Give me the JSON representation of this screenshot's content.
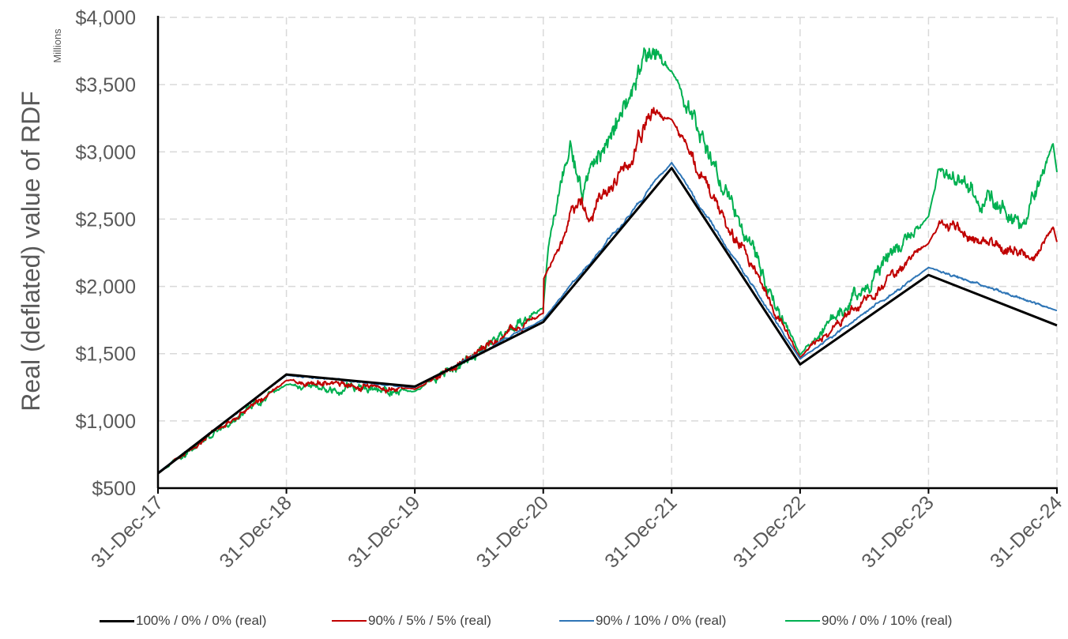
{
  "chart_data": {
    "type": "line",
    "title": "",
    "ylabel": "Real (deflated) value of RDF",
    "yunit": "Millions",
    "xlabel": "",
    "ylim": [
      500,
      4000
    ],
    "yticks": [
      500,
      1000,
      1500,
      2000,
      2500,
      3000,
      3500,
      4000
    ],
    "ytick_labels": [
      "$500",
      "$1,000",
      "$1,500",
      "$2,000",
      "$2,500",
      "$3,000",
      "$3,500",
      "$4,000"
    ],
    "x": [
      "31-Dec-17",
      "31-Dec-18",
      "31-Dec-19",
      "31-Dec-20",
      "31-Dec-21",
      "31-Dec-22",
      "31-Dec-23",
      "31-Dec-24"
    ],
    "grid": true,
    "legend_position": "bottom",
    "series": [
      {
        "name": "100% / 0% / 0% (real)",
        "color": "#000000",
        "noise": 0,
        "values": [
          610,
          1345,
          1255,
          1735,
          2880,
          1420,
          2085,
          1710
        ]
      },
      {
        "name": "90% / 5% / 5% (real)",
        "color": "#C00000",
        "noise": 0.012,
        "values": [
          615,
          1300,
          1235,
          1800,
          3240,
          1470,
          2320,
          2330
        ],
        "peaks": [
          {
            "x": "31-Dec-20",
            "y": 2050
          },
          {
            "x": "20-Apr-21",
            "y": 2620
          },
          {
            "x": "15-May-21",
            "y": 2480
          },
          {
            "x": "10-Nov-21",
            "y": 3280
          },
          {
            "x": "28-Dec-21",
            "y": 3240
          },
          {
            "x": "30-Jan-24",
            "y": 2480
          },
          {
            "x": "15-Oct-24",
            "y": 2200
          },
          {
            "x": "20-Dec-24",
            "y": 2440
          }
        ]
      },
      {
        "name": "90% / 10% / 0% (real)",
        "color": "#2E75B6",
        "noise": 0.003,
        "values": [
          615,
          1340,
          1250,
          1755,
          2920,
          1460,
          2140,
          1820
        ]
      },
      {
        "name": "90% / 0% / 10% (real)",
        "color": "#00B050",
        "noise": 0.016,
        "values": [
          610,
          1270,
          1220,
          1840,
          3600,
          1490,
          2520,
          2850
        ],
        "peaks": [
          {
            "x": "15-Jan-21",
            "y": 2320
          },
          {
            "x": "15-Mar-21",
            "y": 3050
          },
          {
            "x": "20-Apr-21",
            "y": 2650
          },
          {
            "x": "10-Nov-21",
            "y": 3780
          },
          {
            "x": "28-Dec-21",
            "y": 3600
          },
          {
            "x": "30-Jan-24",
            "y": 2890
          },
          {
            "x": "20-Sep-24",
            "y": 2450
          },
          {
            "x": "20-Dec-24",
            "y": 3050
          }
        ]
      }
    ]
  }
}
